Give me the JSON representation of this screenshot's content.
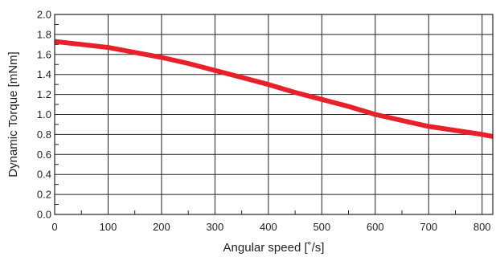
{
  "chart_data": {
    "type": "line",
    "title": "",
    "xlabel": "Angular speed [˚/s]",
    "ylabel": "Dynamic Torque [mNm]",
    "xlim": [
      0,
      820
    ],
    "ylim": [
      0,
      2.0
    ],
    "grid": true,
    "x_ticks": [
      0,
      100,
      200,
      300,
      400,
      500,
      600,
      700,
      800
    ],
    "x_tick_labels": [
      "0",
      "100",
      "200",
      "300",
      "400",
      "500",
      "600",
      "700",
      "800"
    ],
    "y_ticks": [
      0,
      0.2,
      0.4,
      0.6,
      0.8,
      1.0,
      1.2,
      1.4,
      1.6,
      1.8,
      2.0
    ],
    "y_tick_labels": [
      "0.0",
      "0.2",
      "0.4",
      "0.6",
      "0.8",
      "1.0",
      "1.2",
      "1.4",
      "1.6",
      "1.8",
      "2.0"
    ],
    "series": [
      {
        "color": "#e8202a",
        "x": [
          0,
          50,
          100,
          150,
          200,
          250,
          300,
          350,
          400,
          450,
          500,
          550,
          600,
          650,
          700,
          750,
          800,
          820
        ],
        "y": [
          1.73,
          1.7,
          1.67,
          1.62,
          1.57,
          1.51,
          1.44,
          1.37,
          1.3,
          1.22,
          1.15,
          1.08,
          1.0,
          0.94,
          0.88,
          0.84,
          0.8,
          0.78
        ]
      }
    ]
  }
}
